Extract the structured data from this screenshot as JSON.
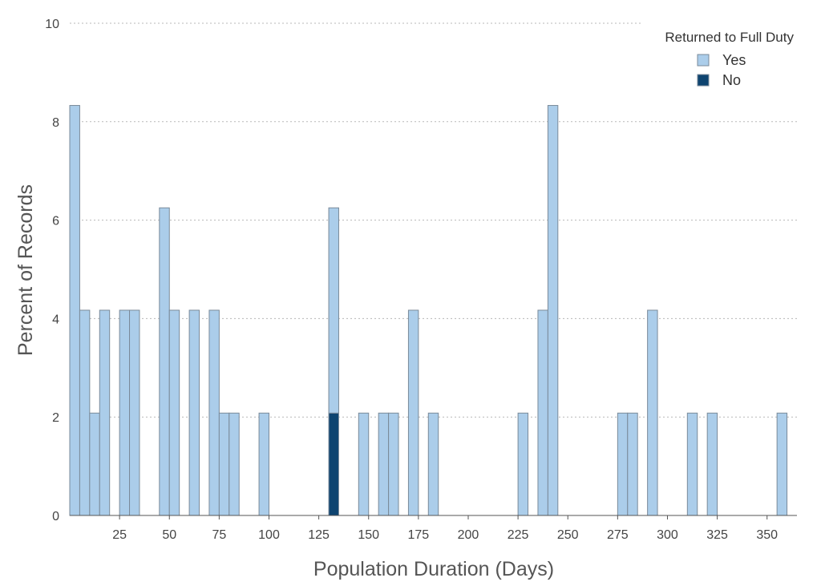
{
  "chart_data": {
    "type": "bar",
    "subtype": "stacked-histogram",
    "title": "",
    "xlabel": "Population Duration (Days)",
    "ylabel": "Percent of Records",
    "xlim": [
      0,
      365
    ],
    "ylim": [
      0,
      10
    ],
    "bin_width": 5,
    "x_ticks": [
      25,
      50,
      75,
      100,
      125,
      150,
      175,
      200,
      225,
      250,
      275,
      300,
      325,
      350
    ],
    "y_ticks": [
      0,
      2,
      4,
      6,
      8,
      10
    ],
    "grid": "horizontal-dotted",
    "legend": {
      "title": "Returned to Full Duty",
      "placement": "top-right",
      "entries": [
        "Yes",
        "No"
      ]
    },
    "colors": {
      "Yes": "#abcdea",
      "No": "#0e4470",
      "bar_edge": "#7a8a99"
    },
    "bins": [
      {
        "start": 0,
        "yes": 8.33,
        "no": 0
      },
      {
        "start": 5,
        "yes": 4.17,
        "no": 0
      },
      {
        "start": 10,
        "yes": 2.08,
        "no": 0
      },
      {
        "start": 15,
        "yes": 4.17,
        "no": 0
      },
      {
        "start": 25,
        "yes": 4.17,
        "no": 0
      },
      {
        "start": 30,
        "yes": 4.17,
        "no": 0
      },
      {
        "start": 45,
        "yes": 6.25,
        "no": 0
      },
      {
        "start": 50,
        "yes": 4.17,
        "no": 0
      },
      {
        "start": 60,
        "yes": 4.17,
        "no": 0
      },
      {
        "start": 70,
        "yes": 4.17,
        "no": 0
      },
      {
        "start": 75,
        "yes": 2.08,
        "no": 0
      },
      {
        "start": 80,
        "yes": 2.08,
        "no": 0
      },
      {
        "start": 95,
        "yes": 2.08,
        "no": 0
      },
      {
        "start": 130,
        "yes": 4.17,
        "no": 2.08
      },
      {
        "start": 145,
        "yes": 2.08,
        "no": 0
      },
      {
        "start": 155,
        "yes": 2.08,
        "no": 0
      },
      {
        "start": 160,
        "yes": 2.08,
        "no": 0
      },
      {
        "start": 170,
        "yes": 4.17,
        "no": 0
      },
      {
        "start": 180,
        "yes": 2.08,
        "no": 0
      },
      {
        "start": 225,
        "yes": 2.08,
        "no": 0
      },
      {
        "start": 235,
        "yes": 4.17,
        "no": 0
      },
      {
        "start": 240,
        "yes": 8.33,
        "no": 0
      },
      {
        "start": 275,
        "yes": 2.08,
        "no": 0
      },
      {
        "start": 280,
        "yes": 2.08,
        "no": 0
      },
      {
        "start": 290,
        "yes": 4.17,
        "no": 0
      },
      {
        "start": 310,
        "yes": 2.08,
        "no": 0
      },
      {
        "start": 320,
        "yes": 2.08,
        "no": 0
      },
      {
        "start": 355,
        "yes": 2.08,
        "no": 0
      }
    ]
  }
}
